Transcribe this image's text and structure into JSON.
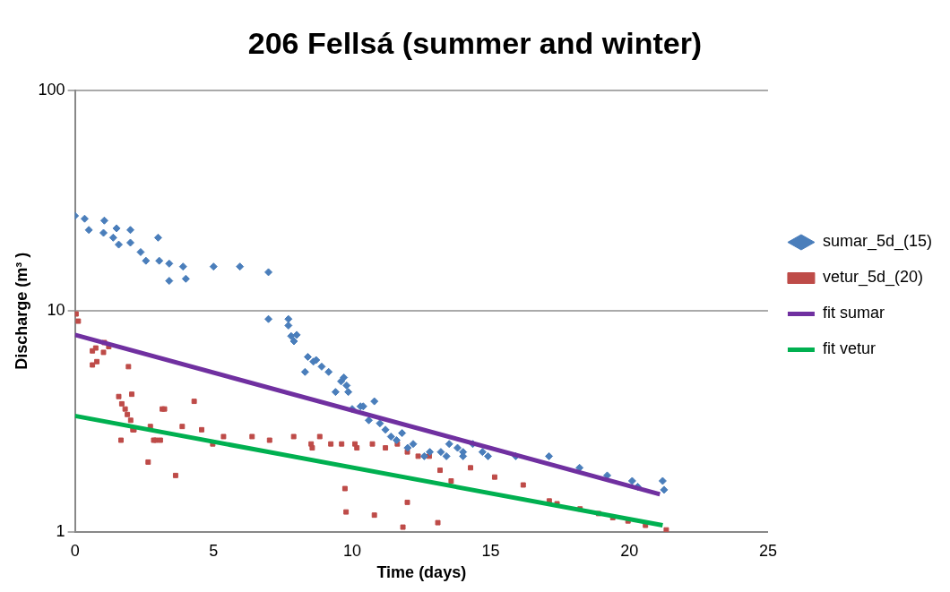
{
  "chart_data": {
    "type": "scatter",
    "title": "206 Fellsá (summer and winter)",
    "xlabel": "Time (days)",
    "ylabel": "Discharge (m³ )",
    "log": "y",
    "xlim": [
      0,
      25
    ],
    "xticks": [
      0,
      5,
      10,
      15,
      20,
      25
    ],
    "ylim": [
      1,
      100
    ],
    "yticks": [
      1,
      10,
      100
    ],
    "grid": "y",
    "legend": "right",
    "series": [
      {
        "name": "sumar_5d_(15)",
        "color": "#4a7ebb",
        "marker": "diamond",
        "x": [
          0,
          0.35,
          0.5,
          1.06,
          1.03,
          1.38,
          1.5,
          1.58,
          2.0,
          2.0,
          2.37,
          3.0,
          2.56,
          3.04,
          3.4,
          3.9,
          3.4,
          4.0,
          5.0,
          5.95,
          6.98,
          6.98,
          7.7,
          7.7,
          7.8,
          8.0,
          7.9,
          8.3,
          8.4,
          8.6,
          8.7,
          8.9,
          9.15,
          9.4,
          9.6,
          9.7,
          9.8,
          9.86,
          10.0,
          10.3,
          10.4,
          10.6,
          10.8,
          11.0,
          11.2,
          11.4,
          11.6,
          11.8,
          12.0,
          12.2,
          12.6,
          12.8,
          13.2,
          13.4,
          13.5,
          13.8,
          14.0,
          14.0,
          14.35,
          14.7,
          14.9,
          15.9,
          17.1,
          18.2,
          19.2,
          20.1,
          20.3,
          21.2,
          21.25
        ],
        "values": [
          27,
          26.2,
          23.3,
          25.7,
          22.6,
          21.5,
          23.7,
          20,
          23.3,
          20.4,
          18.5,
          21.5,
          16.9,
          16.9,
          16.4,
          15.9,
          13.7,
          14,
          15.9,
          15.9,
          15,
          9.2,
          9.2,
          8.6,
          7.7,
          7.8,
          7.3,
          5.3,
          6.2,
          5.9,
          6,
          5.6,
          5.3,
          4.3,
          4.8,
          5,
          4.6,
          4.3,
          3.6,
          3.7,
          3.7,
          3.2,
          3.9,
          3.1,
          2.9,
          2.7,
          2.6,
          2.8,
          2.4,
          2.5,
          2.2,
          2.3,
          2.3,
          2.2,
          2.5,
          2.4,
          2.3,
          2.2,
          2.5,
          2.3,
          2.2,
          2.2,
          2.2,
          1.95,
          1.8,
          1.7,
          1.6,
          1.7,
          1.55
        ]
      },
      {
        "name": "vetur_5d_(20)",
        "color": "#be4b48",
        "marker": "square",
        "x": [
          0.04,
          0.12,
          0.63,
          0.75,
          1.03,
          0.79,
          0.63,
          1.22,
          1.06,
          1.93,
          2.05,
          2.13,
          1.58,
          1.69,
          1.81,
          1.89,
          2.01,
          2.09,
          2.72,
          2.92,
          3.08,
          2.84,
          3.15,
          3.23,
          4.3,
          1.66,
          2.64,
          3.63,
          3.87,
          4.57,
          4.97,
          5.36,
          6.39,
          7.02,
          7.89,
          8.52,
          8.56,
          8.83,
          9.23,
          9.62,
          10.1,
          10.17,
          10.73,
          11.2,
          11.63,
          11.99,
          12.38,
          12.78,
          13.17,
          13.57,
          14.27,
          9.78,
          10.8,
          11.83,
          11.99,
          13.09,
          9.74,
          15.14,
          16.17,
          17.11,
          17.39,
          18.22,
          18.89,
          19.4,
          19.95,
          20.58,
          21.33
        ],
        "values": [
          9.7,
          9.0,
          6.6,
          6.8,
          6.5,
          5.9,
          5.7,
          6.9,
          7.2,
          5.6,
          4.2,
          2.9,
          4.1,
          3.8,
          3.6,
          3.4,
          3.2,
          2.9,
          3.0,
          2.6,
          2.6,
          2.6,
          3.6,
          3.6,
          3.9,
          2.6,
          2.07,
          1.8,
          3.0,
          2.9,
          2.5,
          2.7,
          2.7,
          2.6,
          2.7,
          2.5,
          2.4,
          2.7,
          2.5,
          2.5,
          2.5,
          2.4,
          2.5,
          2.4,
          2.5,
          2.3,
          2.2,
          2.2,
          1.9,
          1.7,
          1.95,
          1.23,
          1.19,
          1.05,
          1.36,
          1.1,
          1.57,
          1.77,
          1.63,
          1.38,
          1.34,
          1.27,
          1.21,
          1.16,
          1.12,
          1.07,
          1.02
        ]
      },
      {
        "name": "fit sumar",
        "type": "line",
        "color": "#7030a0",
        "marker": "none",
        "x": [
          0,
          21.1
        ],
        "values": [
          7.8,
          1.48
        ]
      },
      {
        "name": "fit vetur",
        "type": "line",
        "color": "#00b050",
        "marker": "none",
        "x": [
          0,
          21.2
        ],
        "values": [
          3.35,
          1.07
        ]
      }
    ]
  }
}
